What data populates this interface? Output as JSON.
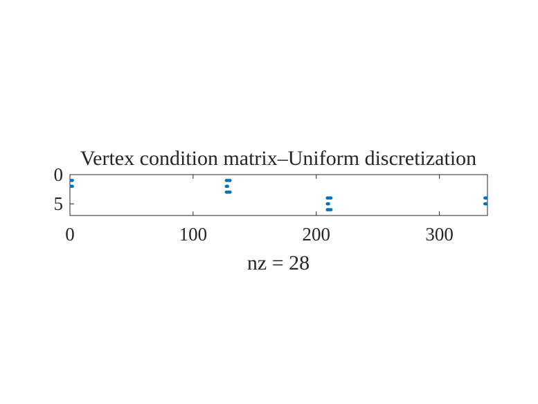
{
  "chart_data": {
    "type": "scatter",
    "subtype": "sparsity-pattern",
    "title": "Vertex condition matrix–Uniform discretization",
    "xlabel": "nz = 28",
    "ylabel": "",
    "xlim": [
      0,
      339
    ],
    "ylim": [
      7,
      0
    ],
    "y_reversed": true,
    "xticks": [
      0,
      100,
      200,
      300
    ],
    "xtick_labels": [
      "0",
      "100",
      "200",
      "300"
    ],
    "yticks": [
      0,
      5
    ],
    "ytick_labels": [
      "0",
      "5"
    ],
    "grid": false,
    "marker_color": "#0072BD",
    "series": [
      {
        "points": [
          [
            1,
            1
          ],
          [
            2,
            1
          ],
          [
            1,
            2
          ],
          [
            2,
            2
          ],
          [
            127,
            1
          ],
          [
            128,
            1
          ],
          [
            129,
            1
          ],
          [
            130,
            1
          ],
          [
            127,
            2
          ],
          [
            128,
            2
          ],
          [
            127,
            3
          ],
          [
            128,
            3
          ],
          [
            129,
            3
          ],
          [
            130,
            3
          ],
          [
            209,
            4
          ],
          [
            210,
            4
          ],
          [
            211,
            4
          ],
          [
            212,
            4
          ],
          [
            209,
            5
          ],
          [
            210,
            5
          ],
          [
            209,
            6
          ],
          [
            210,
            6
          ],
          [
            211,
            6
          ],
          [
            212,
            6
          ],
          [
            337,
            4
          ],
          [
            338,
            4
          ],
          [
            337,
            5
          ],
          [
            338,
            5
          ]
        ]
      }
    ]
  }
}
